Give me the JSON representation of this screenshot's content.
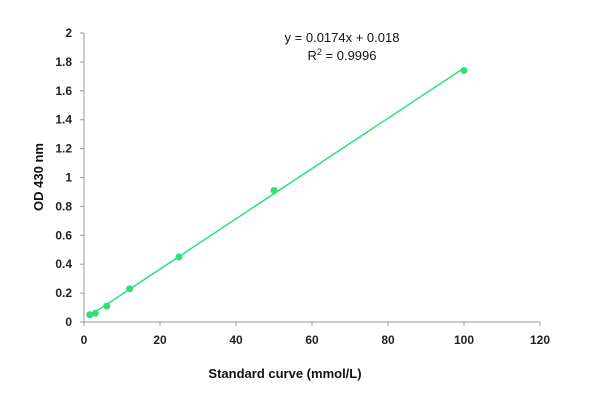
{
  "chart_data": {
    "type": "scatter",
    "xlabel": "Standard curve (mmol/L)",
    "ylabel": "OD 430 nm",
    "xlim": [
      0,
      120
    ],
    "ylim": [
      0,
      2
    ],
    "x_ticks": [
      "0",
      "20",
      "40",
      "60",
      "80",
      "100",
      "120"
    ],
    "y_ticks": [
      "0",
      "0.2",
      "0.4",
      "0.6",
      "0.8",
      "1",
      "1.2",
      "1.4",
      "1.6",
      "1.8",
      "2"
    ],
    "grid": false,
    "series": [
      {
        "color": "#2ee07a",
        "x": [
          1.5,
          3,
          6,
          12,
          25,
          50,
          100
        ],
        "y": [
          0.05,
          0.06,
          0.11,
          0.23,
          0.45,
          0.91,
          1.74
        ]
      }
    ],
    "trendline": {
      "color": "#2ee07a",
      "slope": 0.0174,
      "intercept": 0.018,
      "x_range": [
        1.5,
        100
      ]
    },
    "annotations": {
      "equation": "y = 0.0174x + 0.018",
      "r2_label": "R",
      "r2_sup": "2",
      "r2_value": " = 0.9996"
    }
  }
}
